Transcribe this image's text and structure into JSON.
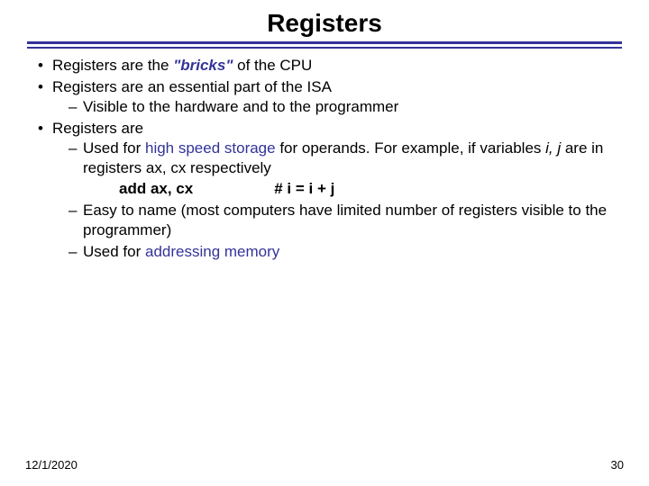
{
  "title": "Registers",
  "bullets": {
    "b1_pre": "Registers are the ",
    "b1_em": "\"bricks\"",
    "b1_post": " of the CPU",
    "b2": "Registers are an essential part of the ISA",
    "b2_sub1": "Visible to the hardware and to the programmer",
    "b3": "Registers are",
    "b3_sub1_pre": "Used for ",
    "b3_sub1_hl": "high speed storage",
    "b3_sub1_post": " for operands. For example, if variables ",
    "b3_sub1_vars": "i, j",
    "b3_sub1_post2": " are in registers ",
    "b3_sub1_regs": "ax, cx",
    "b3_sub1_post3": " respectively",
    "code_instr": "add ax, cx",
    "code_comment": "# i = i + j",
    "b3_sub2": "Easy to name (most computers have limited number of registers visible to the programmer)",
    "b3_sub3_pre": "Used for ",
    "b3_sub3_hl": "addressing memory"
  },
  "footer": {
    "date": "12/1/2020",
    "page": "30"
  }
}
